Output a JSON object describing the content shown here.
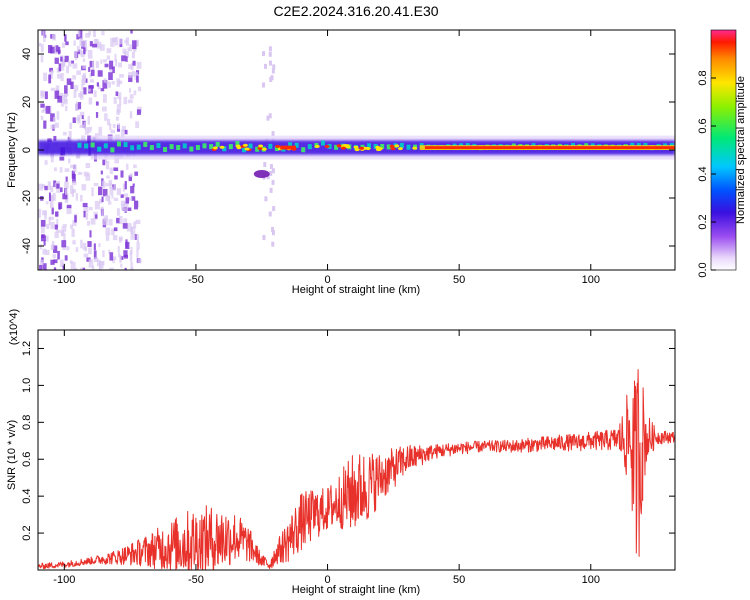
{
  "title": "C2E2.2024.316.20.41.E30",
  "colors": {
    "snr_line": "#e8312a",
    "ridge_low": "#6a0dad",
    "ridge_mid": "#00c8c8",
    "ridge_high": "#ff2a00",
    "scatter": "#7b2fd6",
    "scatter_faint": "#d9c7f2"
  },
  "chart_data": [
    {
      "type": "heatmap",
      "xlabel": "Height of straight line (km)",
      "ylabel": "Frequency (Hz)",
      "xlim": [
        -110,
        132
      ],
      "ylim": [
        -50,
        50
      ],
      "x_ticks": [
        -100,
        -50,
        0,
        50,
        100
      ],
      "y_ticks": [
        -40,
        -20,
        0,
        20,
        40
      ],
      "grid": false,
      "colorbar": {
        "label": "Normalized spectral amplitude",
        "ticks": [
          0.0,
          0.2,
          0.4,
          0.6,
          0.8
        ],
        "range": [
          0,
          1
        ]
      },
      "features": {
        "dominant_frequency_hz": 1,
        "noisy_region_x": [
          -110,
          -78
        ],
        "strong_band_x": [
          35,
          132
        ],
        "isolated_patch": {
          "x": -25,
          "y": -10
        }
      }
    },
    {
      "type": "line",
      "xlabel": "Height of straight line (km)",
      "ylabel": "SNR (10 * v/v)",
      "scale_note": "(x10^4)",
      "xlim": [
        -110,
        132
      ],
      "ylim": [
        0,
        1.3
      ],
      "x_ticks": [
        -100,
        -50,
        0,
        50,
        100
      ],
      "y_ticks": [
        0.2,
        0.4,
        0.6,
        0.8,
        1.0,
        1.2
      ],
      "grid": false,
      "series": [
        {
          "trend": {
            "x": [
              -110,
              -100,
              -90,
              -80,
              -70,
              -60,
              -50,
              -40,
              -35,
              -30,
              -25,
              -22,
              -20,
              -15,
              -10,
              -5,
              0,
              5,
              10,
              15,
              20,
              30,
              40,
              50,
              60,
              70,
              80,
              90,
              95,
              100,
              105,
              110,
              115,
              117,
              118,
              120,
              125,
              132
            ],
            "y": [
              0.02,
              0.03,
              0.05,
              0.07,
              0.1,
              0.13,
              0.15,
              0.17,
              0.18,
              0.14,
              0.05,
              0.03,
              0.08,
              0.16,
              0.26,
              0.3,
              0.33,
              0.38,
              0.42,
              0.45,
              0.5,
              0.6,
              0.64,
              0.66,
              0.67,
              0.67,
              0.68,
              0.69,
              0.69,
              0.7,
              0.7,
              0.71,
              0.72,
              0.55,
              0.6,
              0.71,
              0.72,
              0.72
            ]
          },
          "amplitude": {
            "x": [
              -110,
              -90,
              -80,
              -70,
              -60,
              -50,
              -40,
              -30,
              -25,
              -20,
              -15,
              -10,
              0,
              5,
              10,
              15,
              20,
              30,
              40,
              60,
              80,
              100,
              110,
              112,
              115,
              118,
              121,
              125,
              132
            ],
            "y": [
              0.015,
              0.02,
              0.04,
              0.08,
              0.14,
              0.2,
              0.18,
              0.1,
              0.03,
              0.05,
              0.12,
              0.16,
              0.12,
              0.16,
              0.22,
              0.2,
              0.14,
              0.08,
              0.04,
              0.03,
              0.04,
              0.05,
              0.06,
              0.14,
              0.3,
              0.6,
              0.15,
              0.04,
              0.03
            ]
          }
        }
      ]
    }
  ]
}
